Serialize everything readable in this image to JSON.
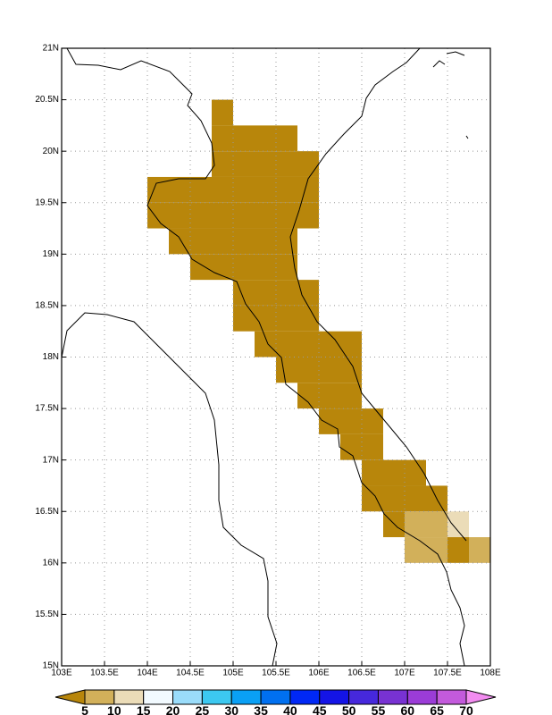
{
  "chart_data": {
    "type": "grid",
    "xlim": [
      103,
      108
    ],
    "ylim": [
      15,
      21
    ],
    "xticks": [
      {
        "value": 103,
        "label": "103E"
      },
      {
        "value": 103.5,
        "label": "103.5E"
      },
      {
        "value": 104,
        "label": "104E"
      },
      {
        "value": 104.5,
        "label": "104.5E"
      },
      {
        "value": 105,
        "label": "105E"
      },
      {
        "value": 105.5,
        "label": "105.5E"
      },
      {
        "value": 106,
        "label": "106E"
      },
      {
        "value": 106.5,
        "label": "106.5E"
      },
      {
        "value": 107,
        "label": "107E"
      },
      {
        "value": 107.5,
        "label": "107.5E"
      },
      {
        "value": 108,
        "label": "108E"
      }
    ],
    "yticks": [
      {
        "value": 15,
        "label": "15N"
      },
      {
        "value": 15.5,
        "label": "15.5N"
      },
      {
        "value": 16,
        "label": "16N"
      },
      {
        "value": 16.5,
        "label": "16.5N"
      },
      {
        "value": 17,
        "label": "17N"
      },
      {
        "value": 17.5,
        "label": "17.5N"
      },
      {
        "value": 18,
        "label": "18N"
      },
      {
        "value": 18.5,
        "label": "18.5N"
      },
      {
        "value": 19,
        "label": "19N"
      },
      {
        "value": 19.5,
        "label": "19.5N"
      },
      {
        "value": 20,
        "label": "20N"
      },
      {
        "value": 20.5,
        "label": "20.5N"
      },
      {
        "value": 21,
        "label": "21N"
      }
    ],
    "grid": true,
    "levels": [
      5,
      10,
      15,
      20,
      25,
      30,
      35,
      40,
      45,
      50,
      55,
      60,
      65,
      70
    ],
    "colors": [
      "#b8860b",
      "#d2b05a",
      "#ebdcb8",
      "#f2faff",
      "#9adcfa",
      "#3cc8f0",
      "#0aa0f5",
      "#0070f0",
      "#0028f5",
      "#1414e6",
      "#4628dc",
      "#7832d2",
      "#9b3cd7",
      "#c35adc",
      "#f28cf0"
    ],
    "cells": [
      {
        "lat": [
          20.25,
          20.5
        ],
        "lon": [
          104.75,
          105.0
        ],
        "value": 2.5
      },
      {
        "lat": [
          20.0,
          20.25
        ],
        "lon": [
          104.75,
          105.75
        ],
        "value": 2.5
      },
      {
        "lat": [
          19.75,
          20.0
        ],
        "lon": [
          104.75,
          106.0
        ],
        "value": 2.5
      },
      {
        "lat": [
          19.5,
          19.75
        ],
        "lon": [
          104.0,
          106.0
        ],
        "value": 2.5
      },
      {
        "lat": [
          19.25,
          19.5
        ],
        "lon": [
          104.0,
          106.0
        ],
        "value": 2.5
      },
      {
        "lat": [
          19.0,
          19.25
        ],
        "lon": [
          104.25,
          105.75
        ],
        "value": 2.5
      },
      {
        "lat": [
          18.75,
          19.0
        ],
        "lon": [
          104.5,
          105.75
        ],
        "value": 2.5
      },
      {
        "lat": [
          18.5,
          18.75
        ],
        "lon": [
          105.0,
          106.0
        ],
        "value": 2.5
      },
      {
        "lat": [
          18.25,
          18.5
        ],
        "lon": [
          105.0,
          106.0
        ],
        "value": 2.5
      },
      {
        "lat": [
          18.0,
          18.25
        ],
        "lon": [
          105.25,
          106.5
        ],
        "value": 2.5
      },
      {
        "lat": [
          17.75,
          18.0
        ],
        "lon": [
          105.5,
          106.5
        ],
        "value": 2.5
      },
      {
        "lat": [
          17.5,
          17.75
        ],
        "lon": [
          105.75,
          106.5
        ],
        "value": 2.5
      },
      {
        "lat": [
          17.25,
          17.5
        ],
        "lon": [
          106.0,
          106.75
        ],
        "value": 2.5
      },
      {
        "lat": [
          17.0,
          17.25
        ],
        "lon": [
          106.25,
          106.75
        ],
        "value": 2.5
      },
      {
        "lat": [
          16.75,
          17.0
        ],
        "lon": [
          106.5,
          107.25
        ],
        "value": 2.5
      },
      {
        "lat": [
          16.5,
          16.75
        ],
        "lon": [
          106.5,
          107.5
        ],
        "value": 2.5
      },
      {
        "lat": [
          16.25,
          16.5
        ],
        "lon": [
          106.75,
          107.0
        ],
        "value": 2.5
      },
      {
        "lat": [
          16.25,
          16.5
        ],
        "lon": [
          107.0,
          107.5
        ],
        "value": 7.5
      },
      {
        "lat": [
          16.25,
          16.5
        ],
        "lon": [
          107.5,
          107.75
        ],
        "value": 12.5
      },
      {
        "lat": [
          16.0,
          16.25
        ],
        "lon": [
          107.0,
          107.5
        ],
        "value": 7.5
      },
      {
        "lat": [
          16.0,
          16.25
        ],
        "lon": [
          107.5,
          107.75
        ],
        "value": 2.5
      },
      {
        "lat": [
          16.0,
          16.25
        ],
        "lon": [
          107.75,
          108.0
        ],
        "value": 7.5
      }
    ]
  }
}
